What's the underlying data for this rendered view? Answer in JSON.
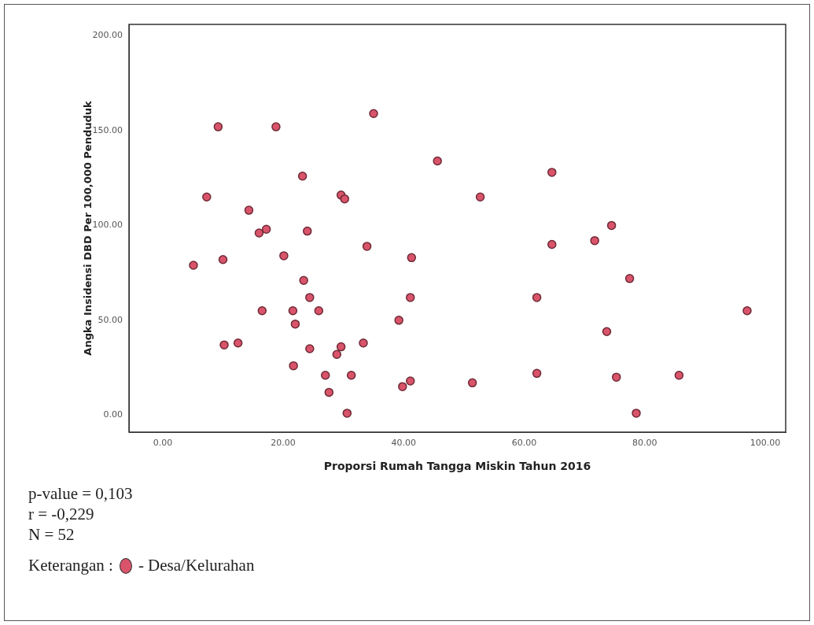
{
  "chart_data": {
    "type": "scatter",
    "xlabel": "Proporsi Rumah Tangga Miskin Tahun 2016",
    "ylabel": "Angka Insidensi DBD Per 100,000 Penduduk",
    "xlim": [
      -5.6,
      103.4
    ],
    "ylim": [
      -9,
      206
    ],
    "xticks": [
      {
        "value": 0,
        "label": "0.00"
      },
      {
        "value": 20,
        "label": "20.00"
      },
      {
        "value": 40,
        "label": "40.00"
      },
      {
        "value": 60,
        "label": "60.00"
      },
      {
        "value": 80,
        "label": "80.00"
      },
      {
        "value": 100,
        "label": "100.00"
      }
    ],
    "yticks": [
      {
        "value": 0,
        "label": "0.00"
      },
      {
        "value": 50,
        "label": "50.00"
      },
      {
        "value": 100,
        "label": "100.00"
      },
      {
        "value": 150,
        "label": "150.00"
      },
      {
        "value": 200,
        "label": "200.00"
      }
    ],
    "grid": false,
    "marker": "circle",
    "legend": "bottom left",
    "legend_title": "Keterangan :",
    "series": [
      {
        "name": "- Desa/Kelurahan",
        "color": "#d9546a",
        "x": [
          5.1,
          7.3,
          9.2,
          10.0,
          10.2,
          12.5,
          14.3,
          16.0,
          17.2,
          16.5,
          18.8,
          20.1,
          21.6,
          21.7,
          22.0,
          23.2,
          23.4,
          24.0,
          24.4,
          24.4,
          25.9,
          27.0,
          27.6,
          28.9,
          29.6,
          29.6,
          30.2,
          30.6,
          31.3,
          33.3,
          33.9,
          35.0,
          39.2,
          39.8,
          41.1,
          41.1,
          41.3,
          45.6,
          51.4,
          52.7,
          62.1,
          62.1,
          64.6,
          64.6,
          71.7,
          73.7,
          74.5,
          75.3,
          77.5,
          78.6,
          85.7,
          97.0
        ],
        "values": [
          79,
          115,
          152,
          82,
          37,
          38,
          108,
          96,
          98,
          55,
          152,
          84,
          55,
          26,
          48,
          126,
          71,
          97,
          62,
          35,
          55,
          21,
          12,
          32,
          36,
          116,
          114,
          1,
          21,
          38,
          89,
          159,
          50,
          15,
          18,
          62,
          83,
          134,
          17,
          115,
          62,
          22,
          128,
          90,
          92,
          44,
          100,
          20,
          72,
          1,
          21,
          55
        ]
      }
    ],
    "annotations": [
      "p-value = 0,103",
      "r = -0,229",
      "N = 52"
    ]
  }
}
